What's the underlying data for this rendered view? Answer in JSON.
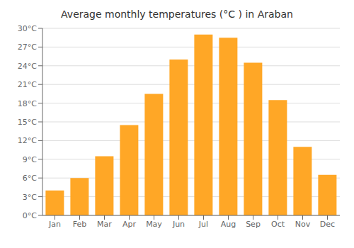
{
  "chart_data": {
    "type": "bar",
    "title": "Average monthly temperatures (°C ) in Araban",
    "categories": [
      "Jan",
      "Feb",
      "Mar",
      "Apr",
      "May",
      "Jun",
      "Jul",
      "Aug",
      "Sep",
      "Oct",
      "Nov",
      "Dec"
    ],
    "values": [
      4.0,
      6.0,
      9.5,
      14.5,
      19.5,
      25.0,
      29.0,
      28.5,
      24.5,
      18.5,
      11.0,
      6.5
    ],
    "color": "#FFA726",
    "ylim": [
      0,
      30
    ],
    "yticks": [
      {
        "value": 0,
        "label": "0°C"
      },
      {
        "value": 3,
        "label": "3°C"
      },
      {
        "value": 6,
        "label": "6°C"
      },
      {
        "value": 9,
        "label": "9°C"
      },
      {
        "value": 12,
        "label": "12°C"
      },
      {
        "value": 15,
        "label": "15°C"
      },
      {
        "value": 18,
        "label": "18°C"
      },
      {
        "value": 21,
        "label": "21°C"
      },
      {
        "value": 24,
        "label": "24°C"
      },
      {
        "value": 27,
        "label": "27°C"
      },
      {
        "value": 30,
        "label": "30°C"
      }
    ],
    "grid": true
  }
}
